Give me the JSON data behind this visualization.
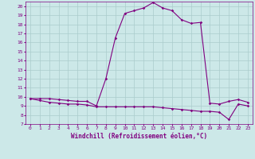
{
  "xlabel": "Windchill (Refroidissement éolien,°C)",
  "xlim": [
    -0.5,
    23.5
  ],
  "ylim": [
    7,
    20.5
  ],
  "yticks": [
    7,
    8,
    9,
    10,
    11,
    12,
    13,
    14,
    15,
    16,
    17,
    18,
    19,
    20
  ],
  "xticks": [
    0,
    1,
    2,
    3,
    4,
    5,
    6,
    7,
    8,
    9,
    10,
    11,
    12,
    13,
    14,
    15,
    16,
    17,
    18,
    19,
    20,
    21,
    22,
    23
  ],
  "background_color": "#cce8e8",
  "line_color": "#800080",
  "grid_color": "#aacccc",
  "line1_x": [
    0,
    1,
    2,
    3,
    4,
    5,
    6,
    7,
    8,
    9,
    10,
    11,
    12,
    13,
    14,
    15,
    16,
    17,
    18,
    19,
    20,
    21,
    22,
    23
  ],
  "line1_y": [
    9.8,
    9.8,
    9.8,
    9.7,
    9.6,
    9.5,
    9.5,
    9.0,
    12.0,
    16.5,
    19.2,
    19.5,
    19.8,
    20.4,
    19.8,
    19.5,
    18.5,
    18.1,
    18.2,
    9.3,
    9.2,
    9.5,
    9.7,
    9.4
  ],
  "line2_x": [
    0,
    1,
    2,
    3,
    4,
    5,
    6,
    7,
    8,
    9,
    10,
    11,
    12,
    13,
    14,
    15,
    16,
    17,
    18,
    19,
    20,
    21,
    22,
    23
  ],
  "line2_y": [
    9.8,
    9.6,
    9.4,
    9.3,
    9.2,
    9.2,
    9.1,
    8.9,
    8.9,
    8.9,
    8.9,
    8.9,
    8.9,
    8.9,
    8.8,
    8.7,
    8.6,
    8.5,
    8.4,
    8.4,
    8.3,
    7.5,
    9.2,
    9.0
  ]
}
